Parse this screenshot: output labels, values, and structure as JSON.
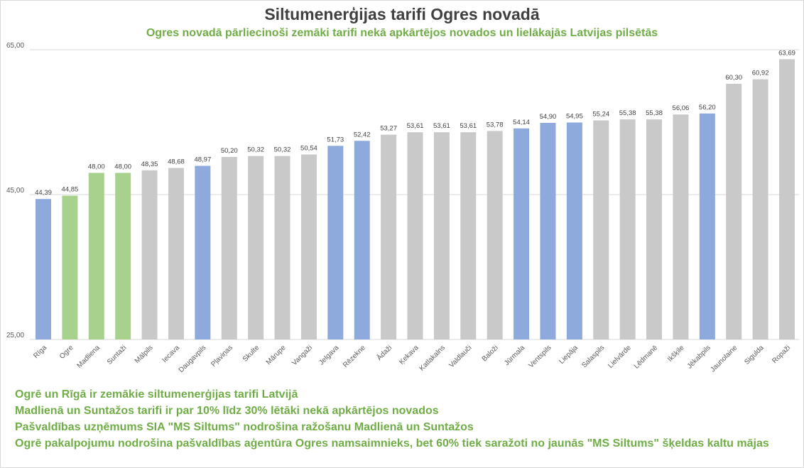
{
  "chart_data": {
    "type": "bar",
    "title": "Siltumenerģijas tarifi  Ogres novadā",
    "subtitle": "Ogres novadā pārliecinoši zemāki tarifi nekā apkārtējos novados un lielākajās Latvijas pilsētās",
    "xlabel": "",
    "ylabel": "",
    "ylim": [
      25,
      65
    ],
    "yticks": [
      "25,00",
      "45,00",
      "65,00"
    ],
    "ytick_values": [
      25,
      45,
      65
    ],
    "grid": true,
    "categories": [
      "Rīga",
      "Ogre",
      "Madliena",
      "Suntaži",
      "Mālpils",
      "Iecava",
      "Daugavpils",
      "Pļaviņas",
      "Skulte",
      "Mārupe",
      "Vangaži",
      "Jelgava",
      "Rēzekne",
      "Ādaži",
      "Ķekava",
      "Katlakalns",
      "Valdlauči",
      "Baloži",
      "Jūrmala",
      "Ventspils",
      "Liepāja",
      "Salaspils",
      "Lielvārde",
      "Lēdmanē",
      "Ikšķile",
      "Jēkabpils",
      "Jaunolaine",
      "Sigulda",
      "Ropaži"
    ],
    "values": [
      44.39,
      44.85,
      48.0,
      48.0,
      48.35,
      48.68,
      48.97,
      50.2,
      50.32,
      50.32,
      50.54,
      51.73,
      52.42,
      53.27,
      53.61,
      53.61,
      53.61,
      53.78,
      54.14,
      54.9,
      54.95,
      55.24,
      55.38,
      55.38,
      56.06,
      56.2,
      60.3,
      60.92,
      63.69
    ],
    "data_labels": [
      "44,39",
      "44,85",
      "48,00",
      "48,00",
      "48,35",
      "48,68",
      "48,97",
      "50,20",
      "50,32",
      "50,32",
      "50,54",
      "51,73",
      "52,42",
      "53,27",
      "53,61",
      "53,61",
      "53,61",
      "53,78",
      "54,14",
      "54,90",
      "54,95",
      "55,24",
      "55,38",
      "55,38",
      "56,06",
      "56,20",
      "60,30",
      "60,92",
      "63,69"
    ],
    "groups": [
      "city",
      "ogre",
      "ogre",
      "ogre",
      "other",
      "other",
      "city",
      "other",
      "other",
      "other",
      "other",
      "city",
      "city",
      "other",
      "other",
      "other",
      "other",
      "other",
      "city",
      "city",
      "city",
      "other",
      "other",
      "other",
      "other",
      "city",
      "other",
      "other",
      "other"
    ]
  },
  "colors": {
    "city": "#8EA9DB",
    "ogre": "#A9D18E",
    "other": "#C9C9C9",
    "accent": "#70AD47"
  },
  "notes": [
    "Ogrē un Rīgā ir zemākie siltumenerģijas tarifi Latvijā",
    "Madlienā un Suntažos tarifi ir par 10% līdz 30% lētāki nekā apkārtējos novados",
    "Pašvaldības uzņēmums SIA \"MS Siltums\" nodrošina ražošanu Madlienā un Suntažos",
    "Ogrē pakalpojumu nodrošina pašvaldības aģentūra Ogres namsaimnieks, bet 60% tiek saražoti no jaunās \"MS Siltums\" šķeldas kaltu mājas"
  ]
}
